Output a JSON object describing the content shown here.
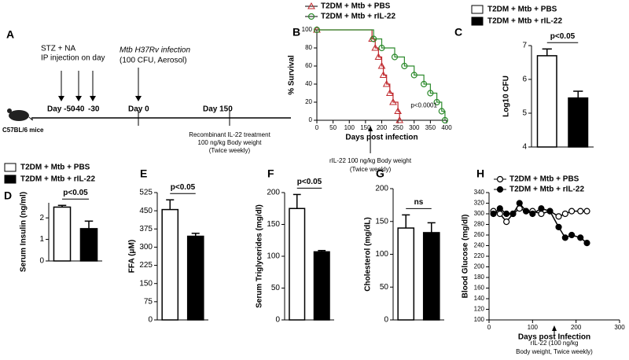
{
  "timeline": {
    "panel": "A",
    "stz": "STZ + NA",
    "ip": "IP injection on day",
    "mtb": "Mtb H37Rv infection",
    "cfu": "(100 CFU, Aerosol)",
    "day_minus50": "Day -50",
    "minus40": "-40",
    "minus30": "-30",
    "day0": "Day 0",
    "day150": "Day 150",
    "mouse": "C57BL/6 mice",
    "treat": [
      "Recombinant IL-22 treatment",
      "100 ng/kg  Body weight",
      "(Twice weekly)"
    ]
  },
  "chart_data": [
    {
      "type": "survival",
      "panel": "B",
      "xlabel": "Days post infection",
      "ylabel": "% Survival",
      "annotation": "p<0.0001",
      "note": [
        "rIL-22 100 ng/kg Body weight",
        "(Twice weekly)"
      ],
      "xlim": [
        0,
        400
      ],
      "xticks": [
        0,
        50,
        100,
        150,
        200,
        250,
        300,
        350,
        400
      ],
      "ylim": [
        0,
        100
      ],
      "yticks": [
        0,
        20,
        40,
        60,
        80,
        100
      ],
      "series": [
        {
          "name": "T2DM + Mtb + PBS",
          "color": "#c0282d",
          "marker": "triangle",
          "x": [
            0,
            170,
            180,
            190,
            200,
            205,
            215,
            225,
            235,
            250,
            255
          ],
          "values": [
            100,
            90,
            80,
            70,
            60,
            50,
            40,
            30,
            20,
            10,
            0
          ]
        },
        {
          "name": "T2DM + Mtb + rIL-22",
          "color": "#2e8b2e",
          "marker": "circle",
          "x": [
            0,
            175,
            200,
            240,
            270,
            300,
            330,
            350,
            370,
            385,
            395
          ],
          "values": [
            100,
            90,
            80,
            70,
            60,
            50,
            40,
            30,
            20,
            10,
            0
          ]
        }
      ]
    },
    {
      "type": "bar",
      "panel": "C",
      "ylabel": "Log10 CFU",
      "annotation": "p<0.05",
      "categories": [
        "T2DM + Mtb + PBS",
        "T2DM + Mtb + rIL-22"
      ],
      "values": [
        6.7,
        5.45
      ],
      "errors": [
        0.2,
        0.2
      ],
      "colors": [
        "#ffffff",
        "#000000"
      ],
      "ylim": [
        4,
        7
      ],
      "yticks": [
        4,
        5,
        6,
        7
      ]
    },
    {
      "type": "bar",
      "panel": "D",
      "ylabel": "Serum Insulin (ng/ml)",
      "annotation": "p<0.05",
      "categories": [
        "T2DM + Mtb + PBS",
        "T2DM + Mtb + rIL-22"
      ],
      "values": [
        2.5,
        1.5
      ],
      "errors": [
        0.08,
        0.35
      ],
      "colors": [
        "#ffffff",
        "#000000"
      ],
      "ylim": [
        0,
        2.7
      ],
      "yticks": [
        0,
        1,
        2
      ]
    },
    {
      "type": "bar",
      "panel": "E",
      "ylabel": "FFA (μM)",
      "annotation": "p<0.05",
      "values": [
        455,
        345
      ],
      "errors": [
        40,
        12
      ],
      "colors": [
        "#ffffff",
        "#000000"
      ],
      "ylim": [
        0,
        525
      ],
      "yticks": [
        0,
        75,
        150,
        225,
        300,
        375,
        450,
        525
      ]
    },
    {
      "type": "bar",
      "panel": "F",
      "ylabel": "Serum Triglycerides (mg/dl)",
      "annotation": "p<0.05",
      "values": [
        175,
        107
      ],
      "errors": [
        22,
        2
      ],
      "colors": [
        "#ffffff",
        "#000000"
      ],
      "ylim": [
        0,
        200
      ],
      "yticks": [
        0,
        50,
        100,
        150,
        200
      ]
    },
    {
      "type": "bar",
      "panel": "G",
      "ylabel": "Cholesterol (mg/dL)",
      "annotation": "ns",
      "values": [
        140,
        133
      ],
      "errors": [
        20,
        15
      ],
      "colors": [
        "#ffffff",
        "#000000"
      ],
      "ylim": [
        0,
        200
      ],
      "yticks": [
        0,
        50,
        100,
        150,
        200
      ]
    },
    {
      "type": "line",
      "panel": "H",
      "xlabel": "Days post Infection",
      "ylabel": "Blood Glucose (mg/dl)",
      "note": [
        "rIL-22 (100 ng/kg",
        "Body weight, Twice weekly)"
      ],
      "xlim": [
        0,
        300
      ],
      "xticks": [
        0,
        100,
        200,
        300
      ],
      "ylim": [
        100,
        340
      ],
      "yticks": [
        100,
        120,
        140,
        160,
        180,
        200,
        220,
        240,
        260,
        280,
        300,
        320,
        340
      ],
      "series": [
        {
          "name": "T2DM + Mtb + PBS",
          "color": "#000000",
          "marker_fill": "#ffffff",
          "x": [
            10,
            25,
            40,
            55,
            70,
            85,
            100,
            120,
            140,
            160,
            175,
            190,
            210,
            225
          ],
          "values": [
            305,
            300,
            285,
            300,
            310,
            305,
            305,
            300,
            305,
            295,
            300,
            305,
            305,
            305
          ]
        },
        {
          "name": "T2DM + Mtb + rIL-22",
          "color": "#000000",
          "marker_fill": "#000000",
          "x": [
            10,
            25,
            40,
            55,
            70,
            85,
            100,
            120,
            140,
            160,
            175,
            190,
            210,
            225
          ],
          "values": [
            300,
            310,
            300,
            300,
            320,
            305,
            300,
            310,
            305,
            275,
            255,
            260,
            255,
            245
          ]
        }
      ]
    }
  ]
}
